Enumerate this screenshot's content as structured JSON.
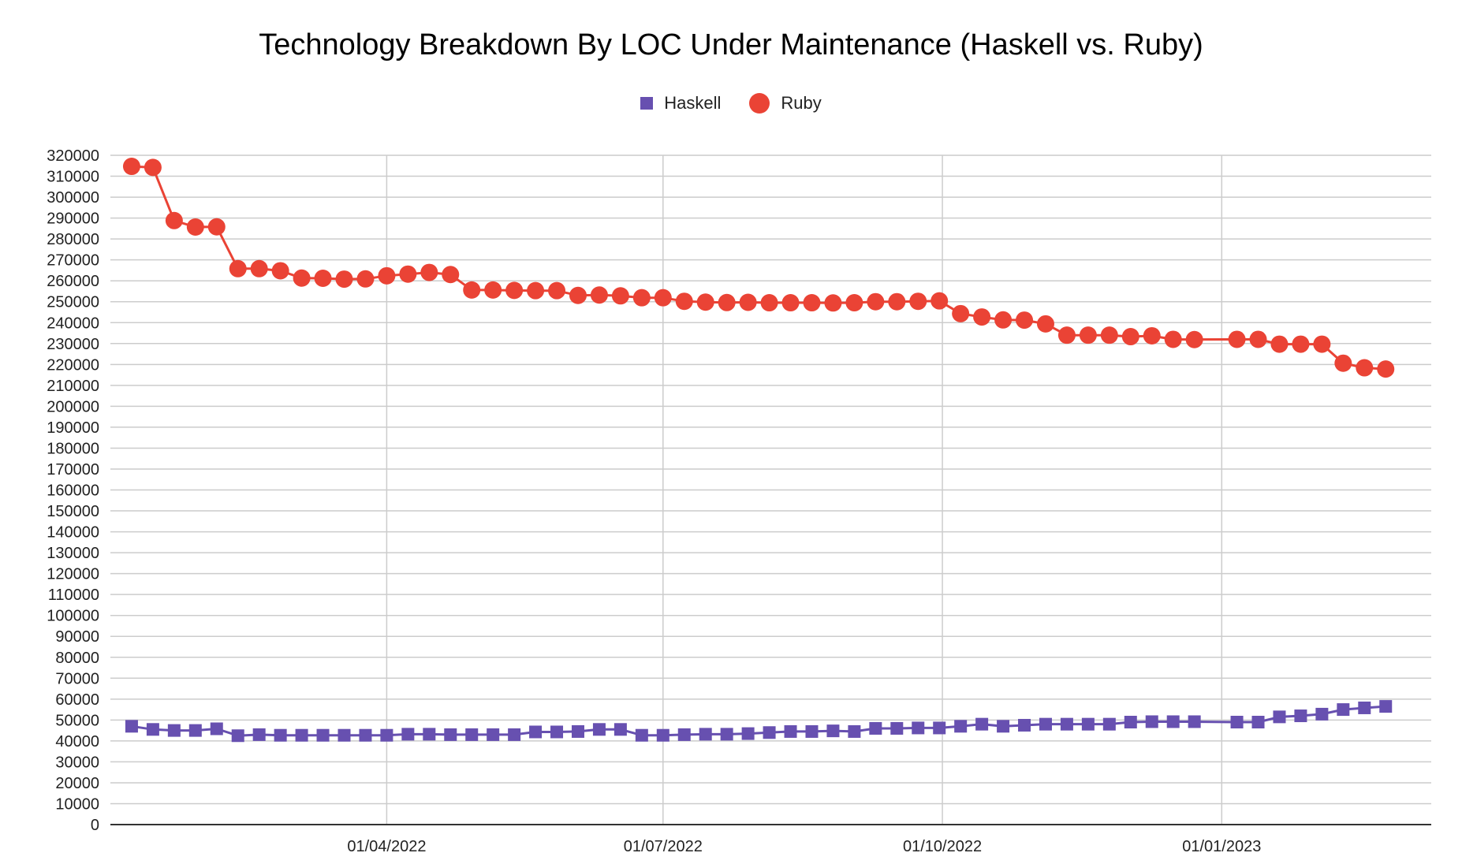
{
  "chart_data": {
    "type": "line",
    "title": "Technology Breakdown By LOC Under Maintenance (Haskell vs. Ruby)",
    "xlabel": "",
    "ylabel": "",
    "ylim": [
      0,
      320000
    ],
    "y_tick_step": 10000,
    "grid": true,
    "legend_position": "top-center",
    "x_tick_labels": [
      {
        "date": "2022-04-01",
        "label": "01/04/2022"
      },
      {
        "date": "2022-07-01",
        "label": "01/07/2022"
      },
      {
        "date": "2022-10-01",
        "label": "01/10/2022"
      },
      {
        "date": "2023-01-01",
        "label": "01/01/2023"
      }
    ],
    "x": [
      "2022-01-07",
      "2022-01-14",
      "2022-01-21",
      "2022-01-28",
      "2022-02-04",
      "2022-02-11",
      "2022-02-18",
      "2022-02-25",
      "2022-03-04",
      "2022-03-11",
      "2022-03-18",
      "2022-03-25",
      "2022-04-01",
      "2022-04-08",
      "2022-04-15",
      "2022-04-22",
      "2022-04-29",
      "2022-05-06",
      "2022-05-13",
      "2022-05-20",
      "2022-05-27",
      "2022-06-03",
      "2022-06-10",
      "2022-06-17",
      "2022-06-24",
      "2022-07-01",
      "2022-07-08",
      "2022-07-15",
      "2022-07-22",
      "2022-07-29",
      "2022-08-05",
      "2022-08-12",
      "2022-08-19",
      "2022-08-26",
      "2022-09-02",
      "2022-09-09",
      "2022-09-16",
      "2022-09-23",
      "2022-09-30",
      "2022-10-07",
      "2022-10-14",
      "2022-10-21",
      "2022-10-28",
      "2022-11-04",
      "2022-11-11",
      "2022-11-18",
      "2022-11-25",
      "2022-12-02",
      "2022-12-09",
      "2022-12-16",
      "2022-12-23",
      "2022-12-30",
      "2023-01-06",
      "2023-01-13",
      "2023-01-20",
      "2023-01-27",
      "2023-02-03",
      "2023-02-10",
      "2023-02-17",
      "2023-02-24",
      "2023-03-03"
    ],
    "series": [
      {
        "name": "Haskell",
        "color": "#6750b0",
        "marker": "square",
        "values": [
          47000,
          45500,
          45000,
          45000,
          45800,
          42500,
          43000,
          42700,
          42700,
          42700,
          42700,
          42700,
          42700,
          43200,
          43200,
          43000,
          43000,
          43000,
          43000,
          44300,
          44300,
          44500,
          45500,
          45500,
          42700,
          42700,
          43000,
          43200,
          43200,
          43500,
          44000,
          44500,
          44500,
          44800,
          44500,
          46000,
          46000,
          46200,
          46200,
          47000,
          48000,
          47000,
          47500,
          48000,
          48000,
          48000,
          48000,
          49000,
          49200,
          49200,
          49200,
          null,
          49000,
          49000,
          51500,
          52000,
          52800,
          55000,
          55800,
          56500,
          null
        ]
      },
      {
        "name": "Ruby",
        "color": "#ea4335",
        "marker": "circle",
        "values": [
          314700,
          314200,
          288800,
          285700,
          285800,
          265800,
          265800,
          264800,
          261300,
          261200,
          260800,
          260900,
          262400,
          263200,
          264000,
          263000,
          255600,
          255600,
          255400,
          255300,
          255300,
          253000,
          253200,
          252800,
          251900,
          251900,
          250200,
          249800,
          249600,
          249700,
          249500,
          249500,
          249500,
          249400,
          249500,
          250000,
          250000,
          250200,
          250400,
          244300,
          242700,
          241300,
          241200,
          239400,
          234000,
          234000,
          234000,
          233300,
          233700,
          232000,
          231900,
          null,
          232000,
          232000,
          229700,
          229700,
          229700,
          220600,
          218400,
          217800,
          null
        ]
      }
    ]
  }
}
